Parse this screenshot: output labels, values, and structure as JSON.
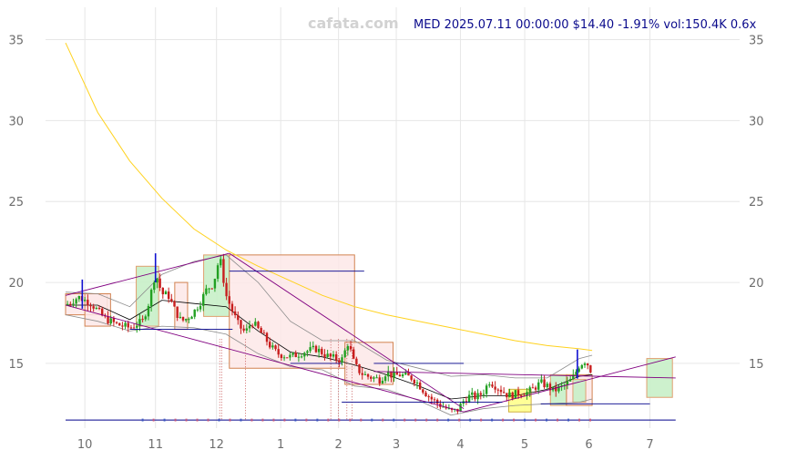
{
  "header": {
    "watermark": "cafata.com",
    "info": "MED 2025.07.11 00:00:00 $14.40 -1.91% vol:150.4K 0.6x"
  },
  "colors": {
    "up": "#22a022",
    "down": "#c81e1e",
    "ma_long": "#ffd21e",
    "band": "#8c8c8c",
    "ma_mid": "#000000",
    "box_fill": "#fde8e8",
    "box_stroke": "#d28250",
    "green_zone": "#c8f0c8",
    "yellow_zone": "#ffff8c",
    "trend": "#800080",
    "support": "#00008c"
  },
  "chart_data": {
    "type": "candlestick",
    "symbol": "MED",
    "last_date": "2025.07.11",
    "last_close": 14.4,
    "change_pct": -1.91,
    "volume": "150.4K",
    "volume_ratio": "0.6x",
    "ylim": [
      11.0,
      37.0
    ],
    "xlim": [
      0,
      100
    ],
    "y_ticks": [
      15,
      20,
      25,
      30,
      35
    ],
    "x_tick_labels": [
      {
        "label": "10",
        "pos": 3
      },
      {
        "label": "11",
        "pos": 14
      },
      {
        "label": "12",
        "pos": 23.5
      },
      {
        "label": "1",
        "pos": 33.5
      },
      {
        "label": "2",
        "pos": 42.5
      },
      {
        "label": "3",
        "pos": 51.5
      },
      {
        "label": "4",
        "pos": 61.5
      },
      {
        "label": "5",
        "pos": 71.5
      },
      {
        "label": "6",
        "pos": 81.5
      },
      {
        "label": "7",
        "pos": 91
      }
    ],
    "close_path": [
      [
        0,
        18.6
      ],
      [
        2,
        19.1
      ],
      [
        4,
        18.7
      ],
      [
        6,
        17.8
      ],
      [
        8,
        17.4
      ],
      [
        10,
        17.2
      ],
      [
        12,
        17.6
      ],
      [
        13,
        18.8
      ],
      [
        14,
        20.6
      ],
      [
        15,
        19.3
      ],
      [
        16,
        19.2
      ],
      [
        17,
        18.3
      ],
      [
        18,
        17.6
      ],
      [
        19,
        17.8
      ],
      [
        20,
        18.2
      ],
      [
        21,
        18.8
      ],
      [
        22,
        19.6
      ],
      [
        23,
        19.9
      ],
      [
        24,
        21.6
      ],
      [
        25,
        19.2
      ],
      [
        26,
        18.2
      ],
      [
        27,
        17.3
      ],
      [
        28,
        16.9
      ],
      [
        29,
        17.6
      ],
      [
        30,
        17.1
      ],
      [
        31,
        16.6
      ],
      [
        32,
        16.0
      ],
      [
        33,
        15.6
      ],
      [
        35,
        15.4
      ],
      [
        37,
        15.7
      ],
      [
        39,
        15.9
      ],
      [
        41,
        15.4
      ],
      [
        43,
        15.2
      ],
      [
        44,
        16.3
      ],
      [
        45,
        14.9
      ],
      [
        46,
        14.4
      ],
      [
        47,
        14.2
      ],
      [
        48,
        14.1
      ],
      [
        49,
        14.0
      ],
      [
        50,
        14.5
      ],
      [
        51,
        14.2
      ],
      [
        52,
        14.3
      ],
      [
        53,
        14.2
      ],
      [
        54,
        14.1
      ],
      [
        55,
        13.7
      ],
      [
        56,
        13.2
      ],
      [
        57,
        12.8
      ],
      [
        58,
        12.5
      ],
      [
        59,
        12.3
      ],
      [
        60,
        12.0
      ],
      [
        61,
        12.1
      ],
      [
        62,
        12.7
      ],
      [
        63,
        13.0
      ],
      [
        64,
        12.9
      ],
      [
        65,
        13.2
      ],
      [
        66,
        13.9
      ],
      [
        67,
        13.6
      ],
      [
        68,
        13.3
      ],
      [
        69,
        13.0
      ],
      [
        70,
        13.1
      ],
      [
        71,
        13.2
      ],
      [
        72,
        13.2
      ],
      [
        73,
        13.5
      ],
      [
        74,
        13.8
      ],
      [
        75,
        13.6
      ],
      [
        76,
        13.3
      ],
      [
        77,
        13.5
      ],
      [
        78,
        13.7
      ],
      [
        79,
        14.1
      ],
      [
        80,
        14.9
      ],
      [
        81,
        15.2
      ],
      [
        82,
        14.4
      ]
    ],
    "ma_long": [
      [
        0,
        34.8
      ],
      [
        5,
        30.5
      ],
      [
        10,
        27.5
      ],
      [
        15,
        25.2
      ],
      [
        20,
        23.3
      ],
      [
        25,
        22.0
      ],
      [
        30,
        21.0
      ],
      [
        35,
        20.1
      ],
      [
        40,
        19.2
      ],
      [
        45,
        18.5
      ],
      [
        50,
        18.0
      ],
      [
        55,
        17.6
      ],
      [
        60,
        17.2
      ],
      [
        65,
        16.8
      ],
      [
        70,
        16.4
      ],
      [
        75,
        16.1
      ],
      [
        80,
        15.9
      ],
      [
        82,
        15.8
      ]
    ],
    "ma_mid": [
      [
        0,
        18.6
      ],
      [
        5,
        18.6
      ],
      [
        10,
        17.7
      ],
      [
        15,
        18.9
      ],
      [
        20,
        18.7
      ],
      [
        25,
        18.5
      ],
      [
        30,
        17.0
      ],
      [
        35,
        15.7
      ],
      [
        40,
        15.4
      ],
      [
        45,
        14.9
      ],
      [
        50,
        14.3
      ],
      [
        55,
        13.6
      ],
      [
        60,
        12.8
      ],
      [
        65,
        13.0
      ],
      [
        70,
        13.0
      ],
      [
        75,
        13.4
      ],
      [
        80,
        14.2
      ],
      [
        82,
        14.3
      ]
    ],
    "band_upper": [
      [
        0,
        19.4
      ],
      [
        5,
        19.3
      ],
      [
        10,
        18.5
      ],
      [
        15,
        20.5
      ],
      [
        20,
        21.3
      ],
      [
        25,
        21.7
      ],
      [
        30,
        20.0
      ],
      [
        35,
        17.6
      ],
      [
        40,
        16.4
      ],
      [
        45,
        16.4
      ],
      [
        50,
        15.2
      ],
      [
        55,
        14.7
      ],
      [
        60,
        14.2
      ],
      [
        65,
        14.3
      ],
      [
        70,
        14.1
      ],
      [
        75,
        14.1
      ],
      [
        80,
        15.3
      ],
      [
        82,
        15.5
      ]
    ],
    "band_lower": [
      [
        0,
        18.0
      ],
      [
        5,
        17.6
      ],
      [
        10,
        17.0
      ],
      [
        15,
        17.3
      ],
      [
        20,
        17.2
      ],
      [
        25,
        16.8
      ],
      [
        30,
        15.6
      ],
      [
        35,
        14.8
      ],
      [
        40,
        14.6
      ],
      [
        45,
        13.6
      ],
      [
        50,
        13.4
      ],
      [
        55,
        12.7
      ],
      [
        60,
        11.8
      ],
      [
        65,
        12.2
      ],
      [
        70,
        12.4
      ],
      [
        75,
        12.5
      ],
      [
        80,
        12.6
      ],
      [
        82,
        12.8
      ]
    ],
    "boxes": [
      {
        "x0": 0,
        "x1": 6.5,
        "y0": 18.0,
        "y1": 19.3,
        "kind": "range"
      },
      {
        "x0": 3,
        "x1": 7,
        "y0": 17.3,
        "y1": 19.3,
        "kind": "range"
      },
      {
        "x0": 11,
        "x1": 14.5,
        "y0": 17.3,
        "y1": 21.0,
        "kind": "green"
      },
      {
        "x0": 17,
        "x1": 19,
        "y0": 17.1,
        "y1": 20.0,
        "kind": "range"
      },
      {
        "x0": 21.5,
        "x1": 25.5,
        "y0": 17.9,
        "y1": 21.7,
        "kind": "green"
      },
      {
        "x0": 25.5,
        "x1": 45,
        "y0": 14.7,
        "y1": 21.7,
        "kind": "range"
      },
      {
        "x0": 43.5,
        "x1": 51,
        "y0": 13.7,
        "y1": 16.3,
        "kind": "range"
      },
      {
        "x0": 69,
        "x1": 72.5,
        "y0": 12.0,
        "y1": 13.4,
        "kind": "yellow"
      },
      {
        "x0": 75.5,
        "x1": 78,
        "y0": 12.4,
        "y1": 14.3,
        "kind": "green"
      },
      {
        "x0": 78,
        "x1": 82,
        "y0": 12.4,
        "y1": 14.3,
        "kind": "range"
      },
      {
        "x0": 79,
        "x1": 81,
        "y0": 12.6,
        "y1": 14.0,
        "kind": "green"
      },
      {
        "x0": 90.5,
        "x1": 94.5,
        "y0": 12.9,
        "y1": 15.3,
        "kind": "green"
      }
    ],
    "trend_lines": [
      {
        "x0": 0,
        "y0": 19.2,
        "x1": 25.5,
        "y1": 21.8
      },
      {
        "x0": 0,
        "y0": 18.6,
        "x1": 62,
        "y1": 12.0
      },
      {
        "x0": 25.5,
        "y0": 21.8,
        "x1": 62,
        "y1": 12.2
      },
      {
        "x0": 48,
        "y0": 14.5,
        "x1": 95,
        "y1": 14.1
      },
      {
        "x0": 62,
        "y0": 12.0,
        "x1": 95,
        "y1": 15.4
      }
    ],
    "support_lines": [
      {
        "x0": 25.5,
        "x1": 46.5,
        "y": 20.7
      },
      {
        "x0": 10,
        "x1": 26,
        "y": 17.1
      },
      {
        "x0": 35,
        "x1": 43,
        "y": 15.0
      },
      {
        "x0": 48,
        "x1": 62,
        "y": 15.0
      },
      {
        "x0": 43,
        "x1": 68,
        "y": 12.6
      },
      {
        "x0": 74,
        "x1": 91,
        "y": 12.5
      },
      {
        "x0": 0,
        "x1": 95,
        "y": 11.5
      }
    ],
    "event_lines": [
      24,
      24.3,
      28,
      41.3,
      42.5,
      43.8,
      44.6
    ],
    "blue_ticks": [
      2.6,
      14,
      79.7
    ]
  }
}
